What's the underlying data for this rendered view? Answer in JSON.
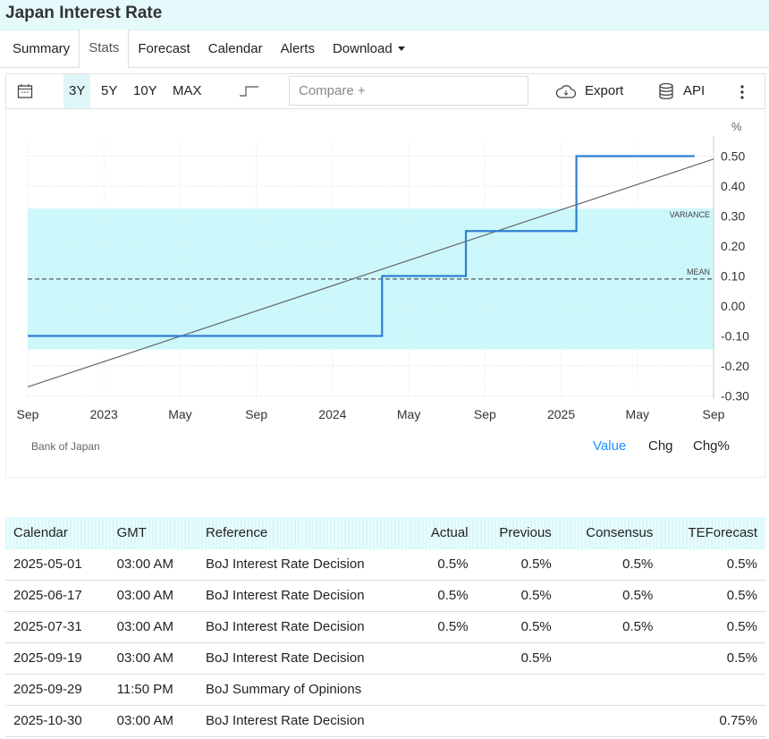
{
  "title": "Japan Interest Rate",
  "tabs": [
    "Summary",
    "Stats",
    "Forecast",
    "Calendar",
    "Alerts",
    "Download"
  ],
  "toolbar": {
    "ranges": [
      "3Y",
      "5Y",
      "10Y",
      "MAX"
    ],
    "selected": "3Y",
    "compare_placeholder": "Compare +",
    "export": "Export",
    "api": "API"
  },
  "chart_data": {
    "type": "line",
    "unit_label": "%",
    "x_ticks": [
      "Sep",
      "2023",
      "May",
      "Sep",
      "2024",
      "May",
      "Sep",
      "2025",
      "May",
      "Sep"
    ],
    "y_ticks": [
      "0.50",
      "0.40",
      "0.30",
      "0.20",
      "0.10",
      "0.00",
      "-0.10",
      "-0.20",
      "-0.30"
    ],
    "ylim": [
      -0.32,
      0.55
    ],
    "series": [
      {
        "name": "Japan Interest Rate",
        "type": "step",
        "points": [
          [
            "2022-09",
            -0.1
          ],
          [
            "2024-03",
            -0.1
          ],
          [
            "2024-03",
            0.1
          ],
          [
            "2024-07",
            0.1
          ],
          [
            "2024-07",
            0.25
          ],
          [
            "2025-01",
            0.25
          ],
          [
            "2025-01",
            0.5
          ],
          [
            "2025-08",
            0.5
          ]
        ]
      }
    ],
    "trend": {
      "start": -0.27,
      "end": 0.49
    },
    "mean": {
      "label": "MEAN",
      "value": 0.09
    },
    "variance": {
      "label": "VARIANCE",
      "low": -0.145,
      "high": 0.325
    },
    "source": "Bank of Japan",
    "views": [
      "Value",
      "Chg",
      "Chg%"
    ],
    "active_view": "Value"
  },
  "calendar": {
    "headers": [
      "Calendar",
      "GMT",
      "Reference",
      "Actual",
      "Previous",
      "Consensus",
      "TEForecast"
    ],
    "rows": [
      [
        "2025-05-01",
        "03:00 AM",
        "BoJ Interest Rate Decision",
        "0.5%",
        "0.5%",
        "0.5%",
        "0.5%"
      ],
      [
        "2025-06-17",
        "03:00 AM",
        "BoJ Interest Rate Decision",
        "0.5%",
        "0.5%",
        "0.5%",
        "0.5%"
      ],
      [
        "2025-07-31",
        "03:00 AM",
        "BoJ Interest Rate Decision",
        "0.5%",
        "0.5%",
        "0.5%",
        "0.5%"
      ],
      [
        "2025-09-19",
        "03:00 AM",
        "BoJ Interest Rate Decision",
        "",
        "0.5%",
        "",
        "0.5%"
      ],
      [
        "2025-09-29",
        "11:50 PM",
        "BoJ Summary of Opinions",
        "",
        "",
        "",
        ""
      ],
      [
        "2025-10-30",
        "03:00 AM",
        "BoJ Interest Rate Decision",
        "",
        "",
        "",
        "0.75%"
      ]
    ]
  }
}
